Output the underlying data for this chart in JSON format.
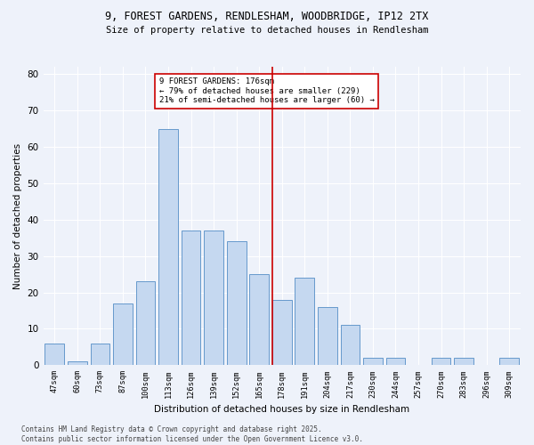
{
  "title_line1": "9, FOREST GARDENS, RENDLESHAM, WOODBRIDGE, IP12 2TX",
  "title_line2": "Size of property relative to detached houses in Rendlesham",
  "xlabel": "Distribution of detached houses by size in Rendlesham",
  "ylabel": "Number of detached properties",
  "bar_labels": [
    "47sqm",
    "60sqm",
    "73sqm",
    "87sqm",
    "100sqm",
    "113sqm",
    "126sqm",
    "139sqm",
    "152sqm",
    "165sqm",
    "178sqm",
    "191sqm",
    "204sqm",
    "217sqm",
    "230sqm",
    "244sqm",
    "257sqm",
    "270sqm",
    "283sqm",
    "296sqm",
    "309sqm"
  ],
  "bar_values": [
    6,
    1,
    6,
    17,
    23,
    65,
    37,
    37,
    34,
    25,
    18,
    24,
    16,
    11,
    2,
    2,
    0,
    2,
    2,
    0,
    2
  ],
  "bar_color": "#c5d8f0",
  "bar_edge_color": "#6699cc",
  "ylim": [
    0,
    82
  ],
  "yticks": [
    0,
    10,
    20,
    30,
    40,
    50,
    60,
    70,
    80
  ],
  "vline_color": "#cc0000",
  "annotation_text": "9 FOREST GARDENS: 176sqm\n← 79% of detached houses are smaller (229)\n21% of semi-detached houses are larger (60) →",
  "annotation_box_color": "#cc0000",
  "footer_text": "Contains HM Land Registry data © Crown copyright and database right 2025.\nContains public sector information licensed under the Open Government Licence v3.0.",
  "bg_color": "#eef2fa",
  "plot_bg_color": "#eef2fa",
  "grid_color": "#ffffff"
}
